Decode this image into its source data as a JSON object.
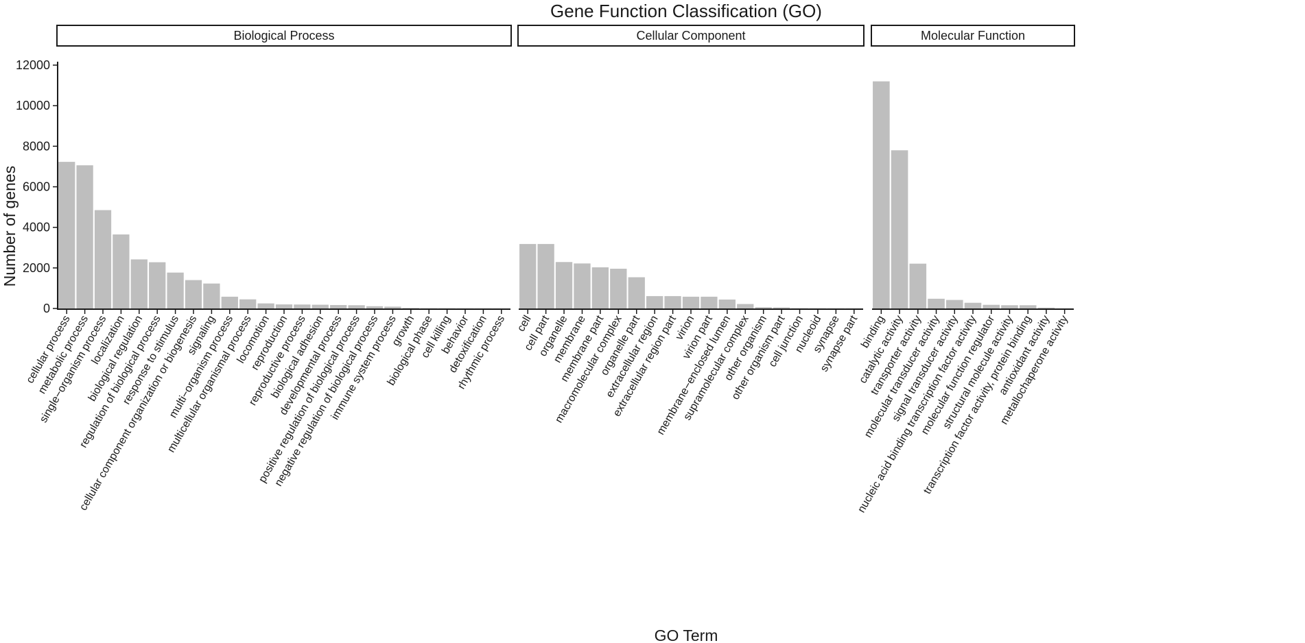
{
  "chart_data": {
    "type": "bar",
    "title": "Gene Function Classification (GO)",
    "xlabel": "GO Term",
    "ylabel": "Number of genes",
    "ylim": [
      0,
      12000
    ],
    "yticks": [
      0,
      2000,
      4000,
      6000,
      8000,
      10000,
      12000
    ],
    "grid": false,
    "colors": {
      "bar": "#bebebe",
      "axis": "#1a1a1a"
    },
    "facets": [
      {
        "name": "Biological Process",
        "categories": [
          "cellular process",
          "metabolic process",
          "single−organism process",
          "localization",
          "biological regulation",
          "regulation of biological process",
          "response to stimulus",
          "cellular component organization or biogenesis",
          "signaling",
          "multi−organism process",
          "multicellular organismal process",
          "locomotion",
          "reproduction",
          "reproductive process",
          "biological adhesion",
          "developmental process",
          "positive regulation of biological process",
          "negative regulation of biological process",
          "immune system process",
          "growth",
          "biological phase",
          "cell killing",
          "behavior",
          "detoxification",
          "rhythmic process"
        ],
        "values": [
          7230,
          7060,
          4850,
          3650,
          2420,
          2280,
          1770,
          1400,
          1230,
          580,
          450,
          250,
          200,
          195,
          185,
          170,
          160,
          110,
          90,
          25,
          10,
          8,
          6,
          5,
          4
        ]
      },
      {
        "name": "Cellular Component",
        "categories": [
          "cell",
          "cell part",
          "organelle",
          "membrane",
          "membrane part",
          "macromolecular complex",
          "organelle part",
          "extracellular region",
          "extracellular region part",
          "virion",
          "virion part",
          "membrane−enclosed lumen",
          "supramolecular complex",
          "other organism",
          "other organism part",
          "cell junction",
          "nucleoid",
          "synapse",
          "synapse part"
        ],
        "values": [
          3180,
          3180,
          2290,
          2220,
          2030,
          1960,
          1540,
          610,
          610,
          580,
          580,
          440,
          220,
          60,
          50,
          12,
          8,
          6,
          5
        ]
      },
      {
        "name": "Molecular Function",
        "categories": [
          "binding",
          "catalytic activity",
          "transporter activity",
          "molecular transducer activity",
          "signal transducer activity",
          "nucleic acid binding transcription factor activity",
          "molecular function regulator",
          "structural molecule activity",
          "transcription factor activity, protein binding",
          "antioxidant activity",
          "metallochaperone activity"
        ],
        "values": [
          11200,
          7800,
          2210,
          480,
          420,
          280,
          180,
          160,
          160,
          40,
          6
        ]
      }
    ]
  }
}
